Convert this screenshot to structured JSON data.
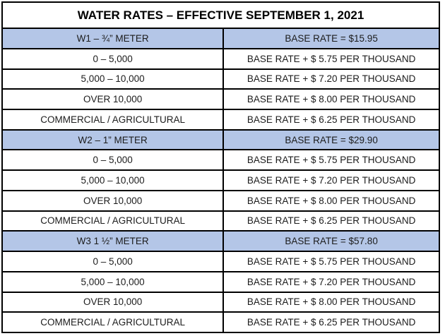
{
  "title": "WATER RATES – EFFECTIVE SEPTEMBER 1, 2021",
  "colors": {
    "section_header_fill": "#b4c6e7",
    "border": "#000000",
    "text": "#1c1c1c"
  },
  "sections": [
    {
      "meter_label": "W1 – ¾” METER",
      "base_rate_label": "BASE RATE = $15.95",
      "rows": [
        {
          "tier": "0 – 5,000",
          "rate": "BASE RATE + $ 5.75 PER THOUSAND"
        },
        {
          "tier": "5,000 – 10,000",
          "rate": "BASE RATE + $ 7.20 PER THOUSAND"
        },
        {
          "tier": "OVER 10,000",
          "rate": "BASE RATE + $ 8.00 PER THOUSAND"
        },
        {
          "tier": "COMMERCIAL / AGRICULTURAL",
          "rate": "BASE RATE + $ 6.25 PER THOUSAND"
        }
      ]
    },
    {
      "meter_label": "W2 – 1” METER",
      "base_rate_label": "BASE RATE = $29.90",
      "rows": [
        {
          "tier": "0 – 5,000",
          "rate": "BASE RATE + $ 5.75 PER THOUSAND"
        },
        {
          "tier": "5,000 – 10,000",
          "rate": "BASE RATE + $ 7.20 PER THOUSAND"
        },
        {
          "tier": "OVER 10,000",
          "rate": "BASE RATE + $ 8.00 PER THOUSAND"
        },
        {
          "tier": "COMMERCIAL / AGRICULTURAL",
          "rate": "BASE RATE + $ 6.25 PER THOUSAND"
        }
      ]
    },
    {
      "meter_label": "W3 1 ½” METER",
      "base_rate_label": "BASE RATE = $57.80",
      "rows": [
        {
          "tier": "0 – 5,000",
          "rate": "BASE RATE + $ 5.75 PER THOUSAND"
        },
        {
          "tier": "5,000 – 10,000",
          "rate": "BASE RATE + $ 7.20 PER THOUSAND"
        },
        {
          "tier": "OVER 10,000",
          "rate": "BASE RATE + $ 8.00 PER THOUSAND"
        },
        {
          "tier": "COMMERCIAL / AGRICULTURAL",
          "rate": "BASE RATE + $ 6.25 PER THOUSAND"
        }
      ]
    }
  ]
}
